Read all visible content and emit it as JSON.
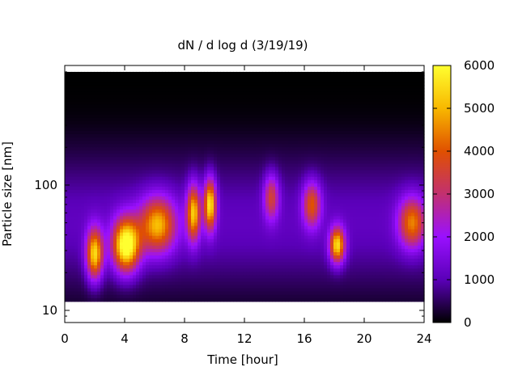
{
  "chart_data": {
    "type": "heatmap",
    "title": "dN / d log d (3/19/19)",
    "xlabel": "Time [hour]",
    "ylabel": "Particle size [nm]",
    "xlim": [
      0,
      24
    ],
    "xticks": [
      0,
      4,
      8,
      12,
      16,
      20,
      24
    ],
    "xtick_labels": [
      "0",
      "4",
      "8",
      "12",
      "16",
      "20",
      "24"
    ],
    "ylim": [
      8,
      900
    ],
    "yscale": "log",
    "yticks": [
      10,
      100
    ],
    "ytick_labels": [
      "10",
      "100"
    ],
    "colorbar": {
      "range": [
        0,
        6000
      ],
      "ticks": [
        0,
        1000,
        2000,
        3000,
        4000,
        5000,
        6000
      ],
      "tick_labels": [
        "0",
        "1000",
        "2000",
        "3000",
        "4000",
        "5000",
        "6000"
      ],
      "palette": [
        "#000000",
        "#5a00b8",
        "#9a10ff",
        "#c23070",
        "#e05000",
        "#f8b800",
        "#ffff30"
      ]
    },
    "data_extent": {
      "y_top_nm": 800,
      "y_bottom_nm": 11.8
    },
    "hotspots": [
      {
        "t": 2.0,
        "d": 28,
        "value": 4600,
        "dt": 0.55,
        "dd": 0.2
      },
      {
        "t": 4.1,
        "d": 33,
        "value": 5600,
        "dt": 0.9,
        "dd": 0.21
      },
      {
        "t": 6.2,
        "d": 48,
        "value": 4000,
        "dt": 1.2,
        "dd": 0.22
      },
      {
        "t": 8.6,
        "d": 60,
        "value": 4200,
        "dt": 0.45,
        "dd": 0.22
      },
      {
        "t": 9.7,
        "d": 70,
        "value": 4700,
        "dt": 0.4,
        "dd": 0.2
      },
      {
        "t": 13.8,
        "d": 80,
        "value": 2600,
        "dt": 0.5,
        "dd": 0.18
      },
      {
        "t": 16.5,
        "d": 70,
        "value": 3000,
        "dt": 0.6,
        "dd": 0.18
      },
      {
        "t": 18.2,
        "d": 33,
        "value": 4600,
        "dt": 0.5,
        "dd": 0.14
      },
      {
        "t": 23.2,
        "d": 50,
        "value": 3400,
        "dt": 0.9,
        "dd": 0.2
      }
    ],
    "grid": false,
    "legend": "colorbar-right"
  }
}
